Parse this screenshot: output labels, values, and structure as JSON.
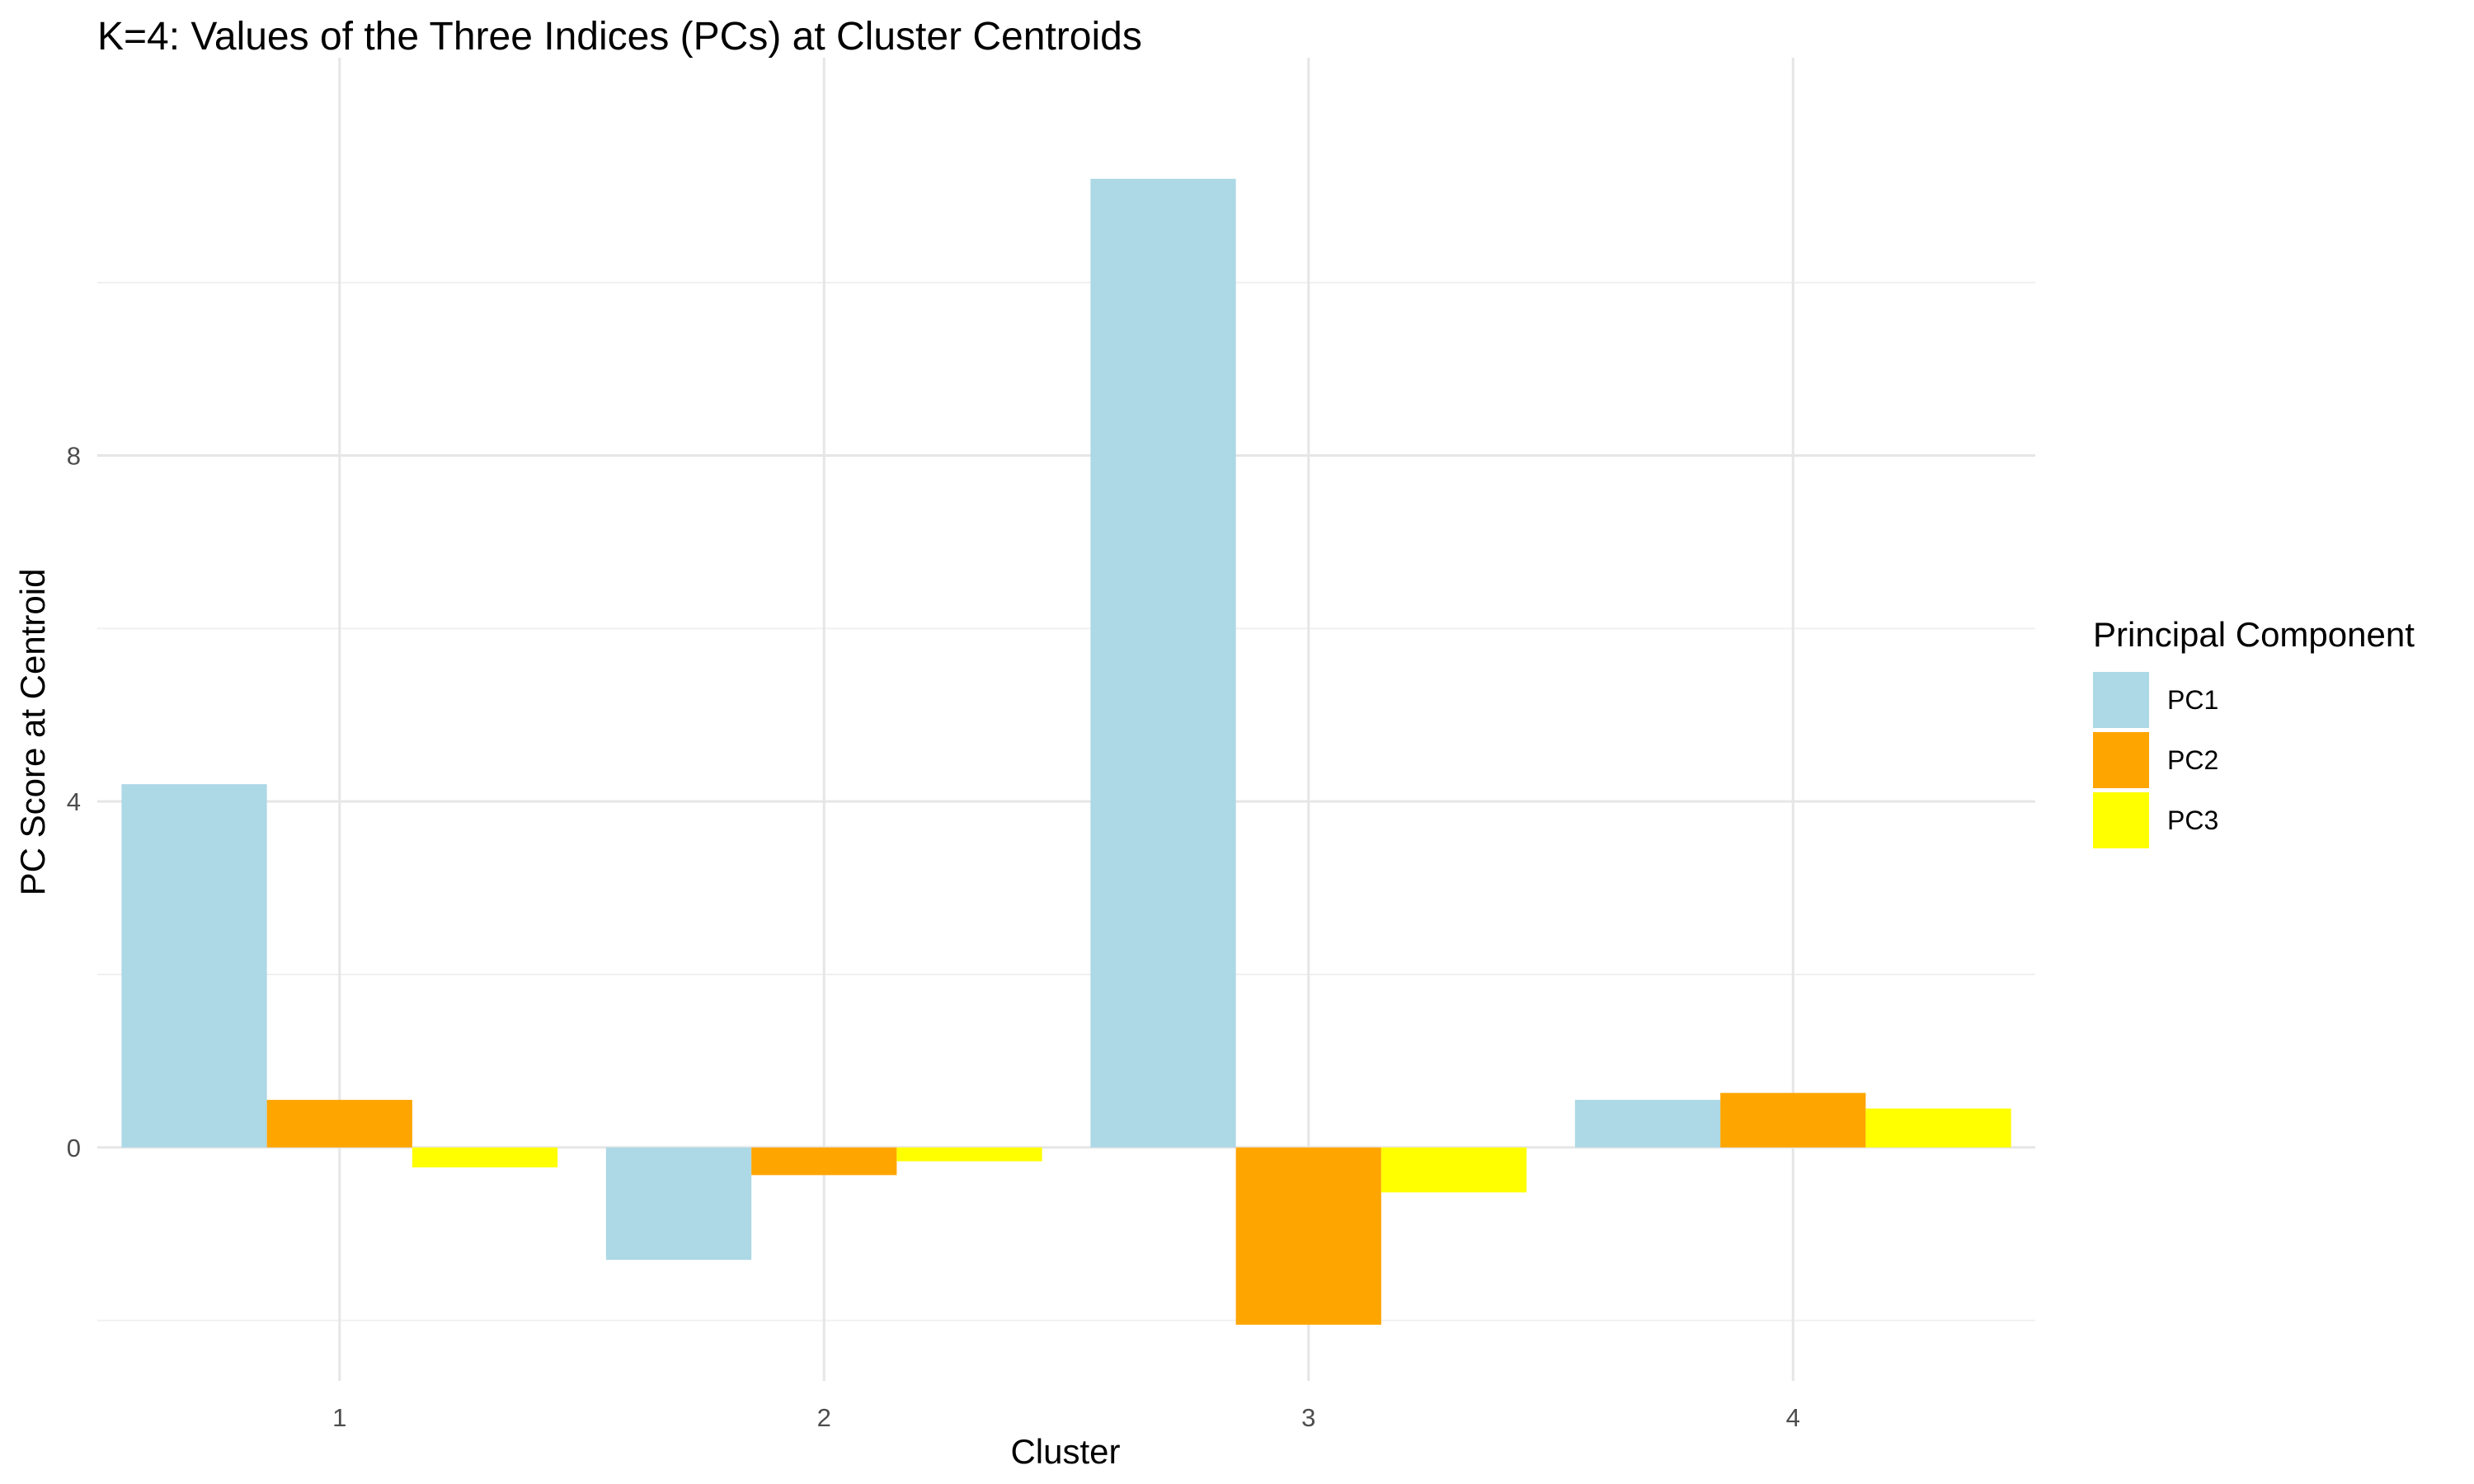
{
  "chart_data": {
    "type": "bar",
    "title": "K=4: Values of the Three Indices (PCs) at Cluster Centroids",
    "xlabel": "Cluster",
    "ylabel": "PC Score at Centroid",
    "categories": [
      "1",
      "2",
      "3",
      "4"
    ],
    "series": [
      {
        "name": "PC1",
        "color": "#ADD8E6",
        "values": [
          4.2,
          -1.3,
          11.2,
          0.55
        ]
      },
      {
        "name": "PC2",
        "color": "#FFA500",
        "values": [
          0.55,
          -0.32,
          -2.05,
          0.63
        ]
      },
      {
        "name": "PC3",
        "color": "#FFFF00",
        "values": [
          -0.23,
          -0.16,
          -0.52,
          0.45
        ]
      }
    ],
    "ylim": [
      -2.7,
      12.6
    ],
    "yticks": [
      0,
      4,
      8
    ],
    "grid": true,
    "legend": {
      "title": "Principal Component",
      "position": "right"
    }
  }
}
